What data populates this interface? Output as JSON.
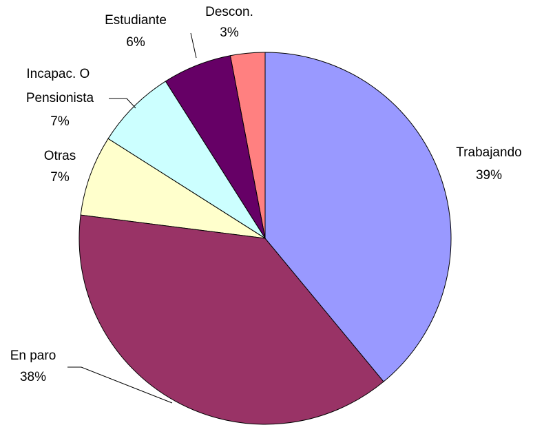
{
  "chart_data": {
    "type": "pie",
    "categories": [
      "Trabajando",
      "En paro",
      "Otras",
      "Incapac. O Pensionista",
      "Estudiante",
      "Descon."
    ],
    "values": [
      39,
      38,
      7,
      7,
      6,
      3
    ],
    "value_labels": [
      "39%",
      "38%",
      "7%",
      "7%",
      "6%",
      "3%"
    ],
    "colors": [
      "#9999ff",
      "#993366",
      "#ffffcc",
      "#ccffff",
      "#660066",
      "#ff8080"
    ]
  }
}
